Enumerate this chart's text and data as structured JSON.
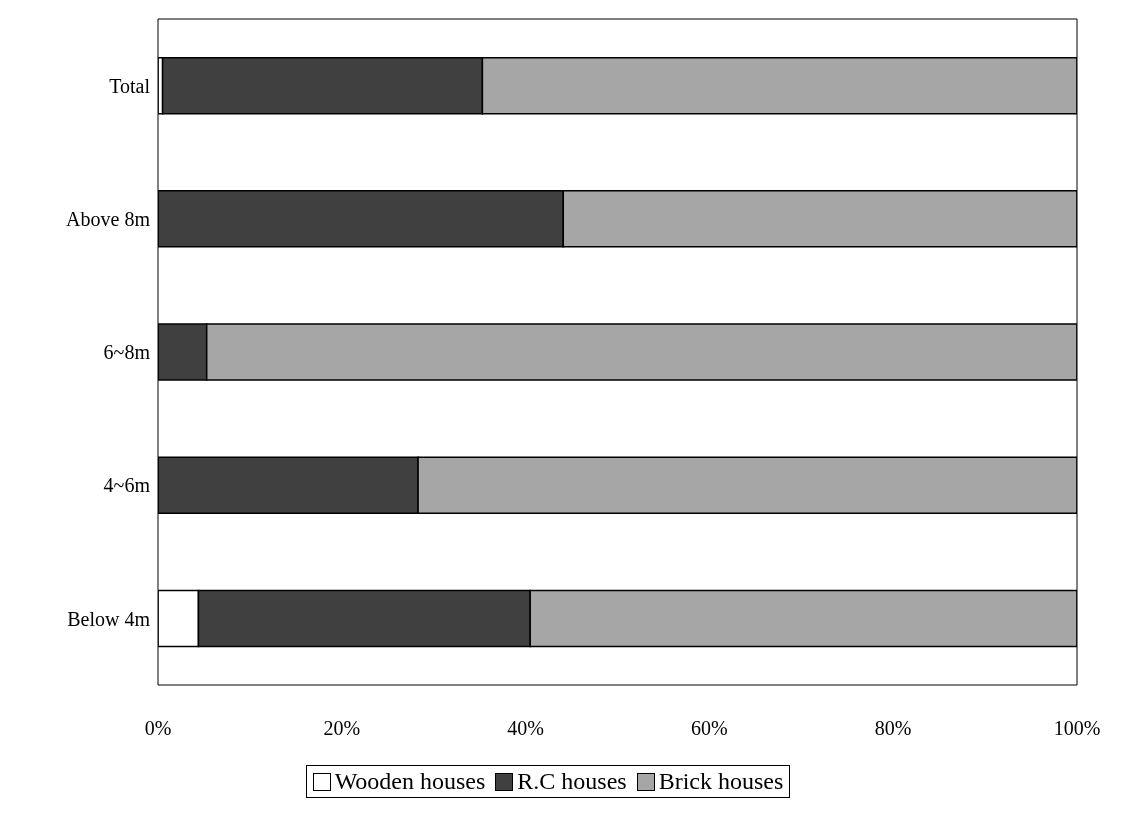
{
  "chart_data": {
    "type": "bar",
    "orientation": "horizontal",
    "stacked": true,
    "categories": [
      "Total",
      "Above 8m",
      "6~8m",
      "4~6m",
      "Below 4m"
    ],
    "series": [
      {
        "name": "Wooden houses",
        "color": "#ffffff",
        "values": [
          0.5,
          0,
          0,
          0,
          4.4
        ]
      },
      {
        "name": "R.C houses",
        "color": "#404040",
        "values": [
          34.8,
          44.1,
          5.3,
          28.3,
          36.1
        ]
      },
      {
        "name": "Brick houses",
        "color": "#a6a6a6",
        "values": [
          64.7,
          55.9,
          94.7,
          71.7,
          59.5
        ]
      }
    ],
    "xlim": [
      0,
      100
    ],
    "xticks": [
      {
        "value": 0,
        "label": "0%"
      },
      {
        "value": 20,
        "label": "20%"
      },
      {
        "value": 40,
        "label": "40%"
      },
      {
        "value": 60,
        "label": "60%"
      },
      {
        "value": 80,
        "label": "80%"
      },
      {
        "value": 100,
        "label": "100%"
      }
    ],
    "grid": false,
    "legend": "bottom"
  }
}
